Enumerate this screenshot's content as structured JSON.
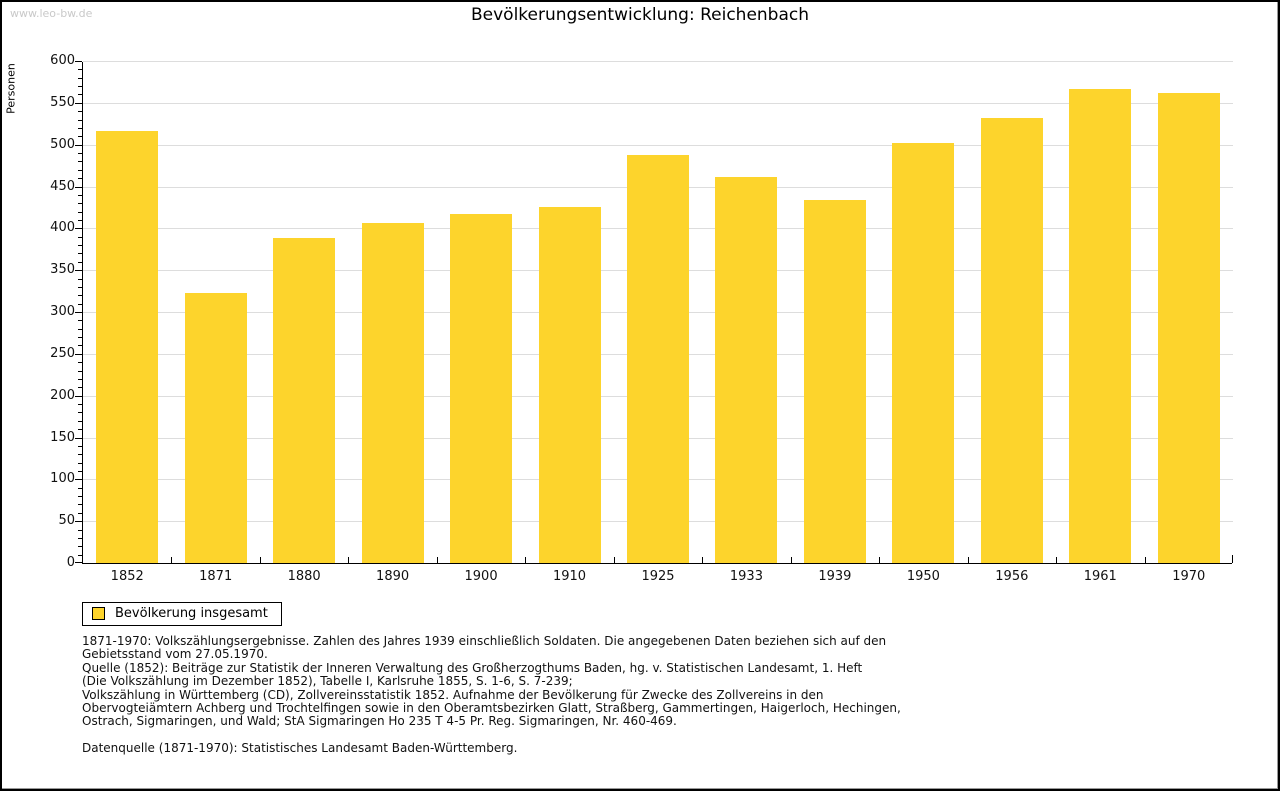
{
  "page": {
    "watermark": "www.leo-bw.de"
  },
  "header": {
    "title": "Bevölkerungsentwicklung: Reichenbach"
  },
  "legend": {
    "label": "Bevölkerung insgesamt"
  },
  "colors": {
    "bar": "#FDD42C",
    "grid": "#DDDDDD",
    "axis": "#000000",
    "watermark": "#C9C9C9"
  },
  "chart_data": {
    "type": "bar",
    "title": "Bevölkerungsentwicklung: Reichenbach",
    "xlabel": "",
    "ylabel": "Personen",
    "categories": [
      "1852",
      "1871",
      "1880",
      "1890",
      "1900",
      "1910",
      "1925",
      "1933",
      "1939",
      "1950",
      "1956",
      "1961",
      "1970"
    ],
    "series": [
      {
        "name": "Bevölkerung insgesamt",
        "values": [
          516,
          323,
          389,
          406,
          417,
          426,
          488,
          461,
          434,
          502,
          532,
          567,
          562
        ]
      }
    ],
    "ylim": [
      0,
      600
    ],
    "ytick_step": 50,
    "ytick_minor_step": 10,
    "grid": true,
    "legend_position": "bottom-left",
    "bar_color": "#FDD42C"
  },
  "footer": {
    "lines": [
      "1871-1970: Volkszählungsergebnisse. Zahlen des Jahres 1939 einschließlich Soldaten. Die angegebenen Daten beziehen sich auf den",
      "Gebietsstand vom 27.05.1970.",
      "Quelle (1852): Beiträge zur Statistik der Inneren Verwaltung des Großherzogthums Baden, hg. v. Statistischen Landesamt, 1. Heft",
      "(Die Volkszählung im Dezember 1852), Tabelle I, Karlsruhe 1855, S. 1-6, S. 7-239;",
      "Volkszählung in Württemberg (CD), Zollvereinsstatistik 1852. Aufnahme der Bevölkerung für Zwecke des Zollvereins in den",
      "Obervogteiämtern Achberg und Trochtelfingen sowie in den Oberamtsbezirken Glatt, Straßberg, Gammertingen, Haigerloch, Hechingen,",
      "Ostrach, Sigmaringen, und Wald; StA Sigmaringen Ho 235 T 4-5 Pr. Reg. Sigmaringen, Nr. 460-469.",
      "",
      "Datenquelle (1871-1970): Statistisches Landesamt Baden-Württemberg."
    ]
  }
}
